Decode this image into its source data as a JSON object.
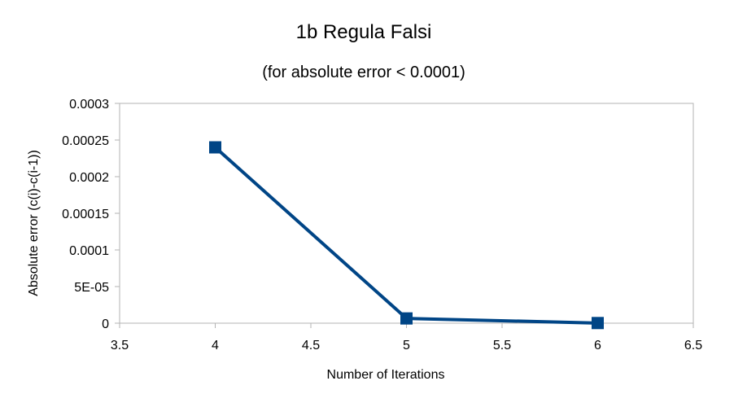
{
  "chart_data": {
    "type": "scatter",
    "title": "1b Regula Falsi",
    "subtitle": "(for absolute error < 0.0001)",
    "xlabel": "Number of Iterations",
    "ylabel": "Absolute error (c(i)-c(i-1))",
    "xlim": [
      3.5,
      6.5
    ],
    "ylim": [
      0,
      0.0003
    ],
    "x_ticks": [
      3.5,
      4,
      4.5,
      5,
      5.5,
      6,
      6.5
    ],
    "x_tick_labels": [
      "3.5",
      "4",
      "4.5",
      "5",
      "5.5",
      "6",
      "6.5"
    ],
    "y_ticks": [
      0,
      5e-05,
      0.0001,
      0.00015,
      0.0002,
      0.00025,
      0.0003
    ],
    "y_tick_labels": [
      "0",
      "5E-05",
      "0.0001",
      "0.00015",
      "0.0002",
      "0.00025",
      "0.0003"
    ],
    "grid": false,
    "legend": "none",
    "series": [
      {
        "x": [
          4,
          5,
          6
        ],
        "y": [
          0.00024,
          6.5e-06,
          2e-07
        ],
        "marker": "square",
        "line": true,
        "color": "#004586"
      }
    ],
    "colors": {
      "series": "#004586",
      "axis": "#b3b3b3",
      "text": "#000000"
    }
  }
}
